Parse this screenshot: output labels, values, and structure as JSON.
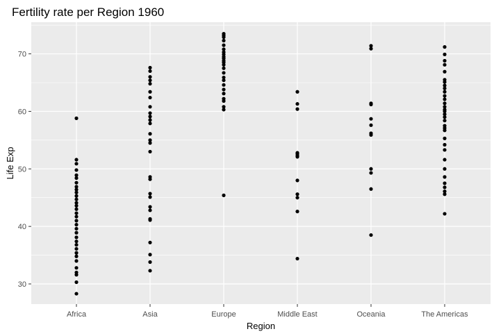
{
  "chart_data": {
    "type": "scatter",
    "title": "Fertility rate per Region 1960",
    "xlabel": "Region",
    "ylabel": "Life Exp",
    "categories": [
      "Africa",
      "Asia",
      "Europe",
      "Middle East",
      "Oceania",
      "The Americas"
    ],
    "ylim": [
      26.5,
      75.5
    ],
    "yticks": [
      30,
      40,
      50,
      60,
      70
    ],
    "grid": true,
    "legend": "none",
    "colors": {
      "panel": "#ebebeb",
      "grid": "#ffffff",
      "point": "#000000",
      "tick_text": "#4d4d4d"
    },
    "series": [
      {
        "name": "Africa",
        "values": [
          58.8,
          51.6,
          50.9,
          49.8,
          48.9,
          48.4,
          47.6,
          46.9,
          46.4,
          45.9,
          45.3,
          44.7,
          44.1,
          43.6,
          43.0,
          42.3,
          41.7,
          41.0,
          40.3,
          39.6,
          38.9,
          38.1,
          37.4,
          36.8,
          36.1,
          35.4,
          34.8,
          34.0,
          32.8,
          32.0,
          31.6,
          30.3,
          28.3
        ]
      },
      {
        "name": "Asia",
        "values": [
          67.6,
          67.0,
          66.0,
          65.4,
          64.8,
          63.4,
          62.4,
          60.8,
          59.7,
          59.1,
          58.5,
          57.9,
          56.1,
          55.0,
          54.5,
          53.0,
          48.6,
          48.2,
          45.7,
          45.1,
          43.4,
          42.8,
          41.3,
          41.1,
          37.2,
          35.1,
          33.8,
          32.3
        ]
      },
      {
        "name": "Europe",
        "values": [
          73.5,
          73.2,
          72.9,
          72.3,
          71.5,
          70.8,
          70.3,
          69.9,
          69.5,
          69.2,
          68.8,
          68.5,
          68.1,
          67.5,
          66.7,
          65.9,
          65.4,
          64.6,
          63.8,
          63.1,
          62.2,
          61.8,
          60.8,
          60.3,
          45.4
        ]
      },
      {
        "name": "Middle East",
        "values": [
          63.4,
          61.3,
          60.4,
          52.8,
          52.6,
          52.3,
          52.1,
          48.0,
          45.6,
          45.0,
          42.6,
          34.4
        ]
      },
      {
        "name": "Oceania",
        "values": [
          71.4,
          70.9,
          61.4,
          61.2,
          58.7,
          57.6,
          56.2,
          55.9,
          50.0,
          49.3,
          46.5,
          38.5
        ]
      },
      {
        "name": "The Americas",
        "values": [
          71.2,
          69.9,
          68.8,
          68.1,
          66.9,
          65.5,
          65.1,
          64.5,
          64.0,
          63.4,
          62.7,
          62.1,
          61.4,
          60.8,
          60.3,
          60.0,
          59.5,
          59.0,
          58.4,
          57.5,
          57.1,
          56.7,
          55.3,
          54.2,
          53.3,
          51.6,
          50.0,
          48.6,
          47.5,
          46.8,
          46.1,
          45.6,
          42.2
        ]
      }
    ]
  }
}
